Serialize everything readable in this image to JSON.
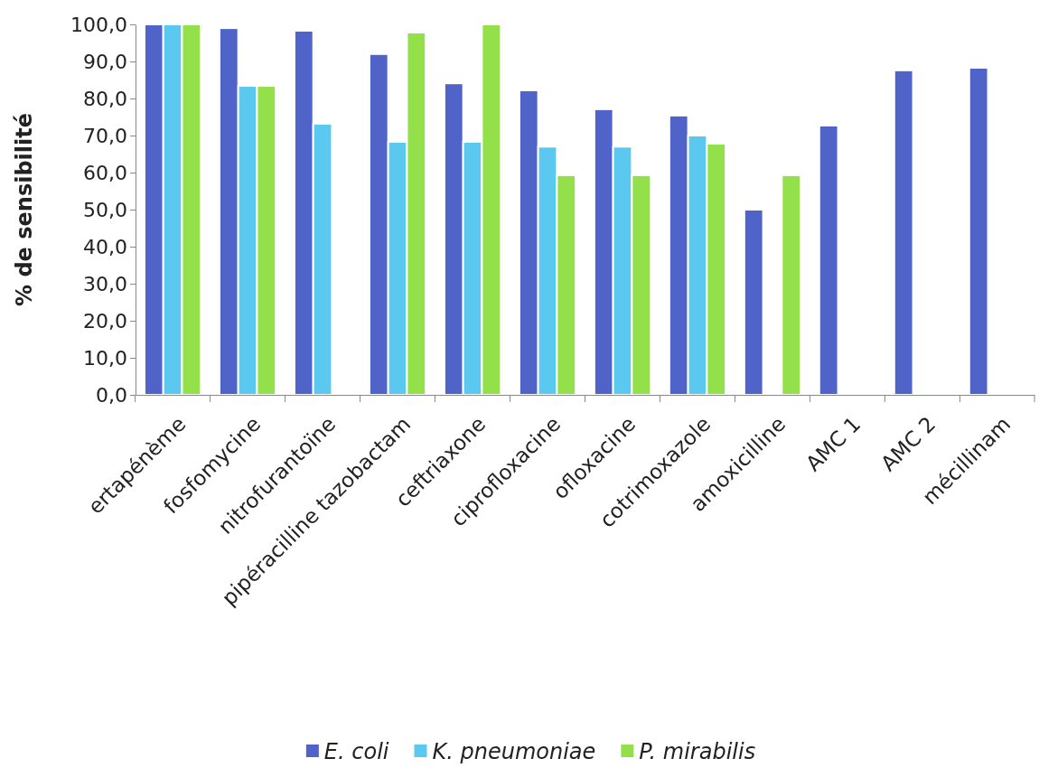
{
  "chart_data": {
    "type": "bar",
    "ylabel": "% de sensibilité",
    "categories": [
      "ertapénème",
      "fosfomycine",
      "nitrofurantoïne",
      "pipéracilline tazobactam",
      "ceftriaxone",
      "ciprofloxacine",
      "ofloxacine",
      "cotrimoxazole",
      "amoxicilline",
      "AMC 1",
      "AMC 2",
      "mécillinam"
    ],
    "series": [
      {
        "name": "E. coli",
        "color": "#4f63c8",
        "values": [
          100,
          99,
          98.3,
          92,
          84.1,
          82.2,
          77.1,
          75.4,
          50,
          72.7,
          87.6,
          88.3
        ]
      },
      {
        "name": "K. pneumoniae",
        "color": "#5bc8f0",
        "values": [
          100,
          83.4,
          73.2,
          68.3,
          68.3,
          67,
          67,
          70,
          null,
          null,
          null,
          null
        ]
      },
      {
        "name": "P. mirabilis",
        "color": "#93e04a",
        "values": [
          100,
          83.4,
          null,
          97.8,
          100,
          59.3,
          59.3,
          67.8,
          59.3,
          null,
          null,
          null
        ]
      }
    ],
    "ylim": [
      0,
      100
    ],
    "yticks": [
      {
        "value": 0,
        "label": "0,0"
      },
      {
        "value": 10,
        "label": "10,0"
      },
      {
        "value": 20,
        "label": "20,0"
      },
      {
        "value": 30,
        "label": "30,0"
      },
      {
        "value": 40,
        "label": "40,0"
      },
      {
        "value": 50,
        "label": "50,0"
      },
      {
        "value": 60,
        "label": "60,0"
      },
      {
        "value": 70,
        "label": "70,0"
      },
      {
        "value": 80,
        "label": "80,0"
      },
      {
        "value": 90,
        "label": "90,0"
      },
      {
        "value": 100,
        "label": "100,0"
      }
    ],
    "legend": "bottom"
  }
}
